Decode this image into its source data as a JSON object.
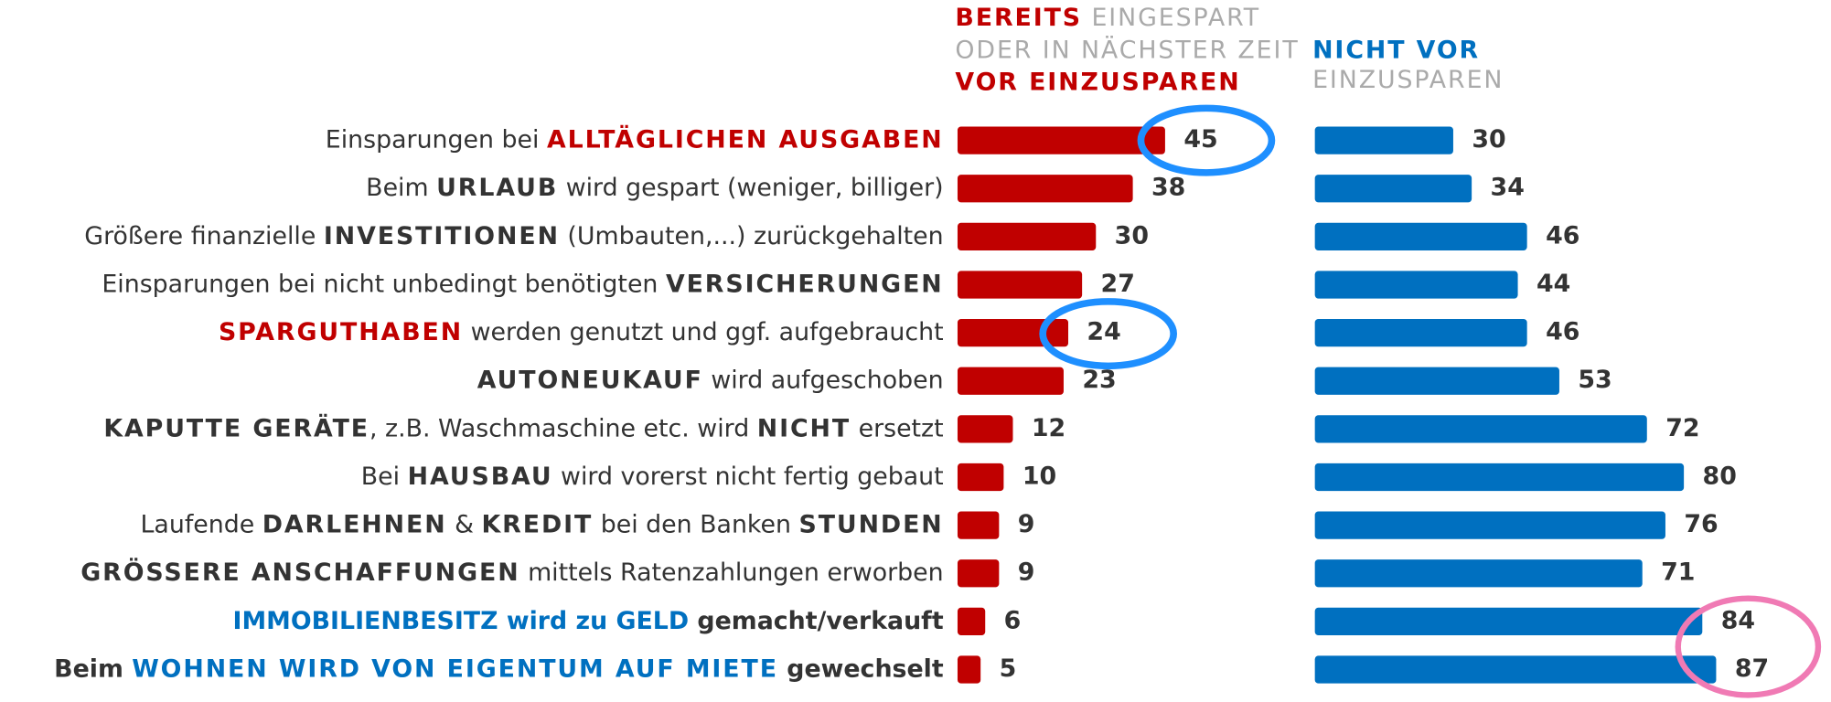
{
  "chart_data": {
    "type": "bar",
    "orientation": "horizontal",
    "categories": [
      [
        {
          "text": "Einsparungen bei "
        },
        {
          "text": "ALLTÄGLICHEN AUSGABEN",
          "weight": "bold",
          "color": "#c00000"
        }
      ],
      [
        {
          "text": "Beim "
        },
        {
          "text": "URLAUB",
          "weight": "bold"
        },
        {
          "text": " wird gespart (weniger, billiger)"
        }
      ],
      [
        {
          "text": "Größere finanzielle "
        },
        {
          "text": "INVESTITIONEN",
          "weight": "bold"
        },
        {
          "text": " (Umbauten,...) zurückgehalten"
        }
      ],
      [
        {
          "text": "Einsparungen bei nicht unbedingt benötigten "
        },
        {
          "text": "VERSICHERUNGEN",
          "weight": "bold"
        }
      ],
      [
        {
          "text": "SPARGUTHABEN",
          "weight": "bold",
          "color": "#c00000"
        },
        {
          "text": " werden genutzt und ggf. aufgebraucht"
        }
      ],
      [
        {
          "text": "AUTONEUKAUF",
          "weight": "bold"
        },
        {
          "text": " wird aufgeschoben"
        }
      ],
      [
        {
          "text": "KAPUTTE GERÄTE",
          "weight": "bold"
        },
        {
          "text": ", z.B. Waschmaschine etc. wird "
        },
        {
          "text": "NICHT",
          "weight": "bold"
        },
        {
          "text": " ersetzt"
        }
      ],
      [
        {
          "text": "Bei "
        },
        {
          "text": "HAUSBAU",
          "weight": "bold"
        },
        {
          "text": " wird vorerst nicht fertig gebaut"
        }
      ],
      [
        {
          "text": "Laufende "
        },
        {
          "text": "DARLEHNEN",
          "weight": "bold"
        },
        {
          "text": " & "
        },
        {
          "text": "KREDIT",
          "weight": "bold"
        },
        {
          "text": " bei den Banken "
        },
        {
          "text": "STUNDEN",
          "weight": "bold"
        }
      ],
      [
        {
          "text": "GRÖSSERE ANSCHAFFUNGEN",
          "weight": "bold"
        },
        {
          "text": " mittels Ratenzahlungen erworben"
        }
      ],
      [
        {
          "text": "IMMOBILIENBESITZ wird zu GELD",
          "weight": "bold",
          "color": "#0070c0"
        },
        {
          "text": " gemacht/verkauft",
          "weight": "bold"
        }
      ],
      [
        {
          "text": "Beim ",
          "weight": "bold"
        },
        {
          "text": "WOHNEN WIRD VON EIGENTUM AUF MIETE",
          "weight": "bold",
          "color": "#0070c0"
        },
        {
          "text": " gewechselt",
          "weight": "bold"
        }
      ]
    ],
    "xlim": [
      0,
      100
    ],
    "series": [
      {
        "header": [
          [
            {
              "text": "BEREITS",
              "weight": "bold",
              "color": "#c00000"
            },
            {
              "text": " EINGESPART",
              "color": "#aaaaaa"
            }
          ],
          [
            {
              "text": "ODER IN NÄCHSTER ZEIT",
              "color": "#aaaaaa"
            }
          ],
          [
            {
              "text": "VOR EINZUSPAREN",
              "weight": "bold",
              "color": "#c00000"
            }
          ]
        ],
        "color": "#c00000",
        "values": [
          45,
          38,
          30,
          27,
          24,
          23,
          12,
          10,
          9,
          9,
          6,
          5
        ]
      },
      {
        "header": [
          [
            {
              "text": "NICHT VOR",
              "weight": "bold",
              "color": "#0070c0"
            }
          ],
          [
            {
              "text": "EINZUSPAREN",
              "color": "#aaaaaa"
            }
          ]
        ],
        "color": "#0070c0",
        "values": [
          30,
          34,
          46,
          44,
          46,
          53,
          72,
          80,
          76,
          71,
          84,
          87
        ]
      }
    ]
  }
}
